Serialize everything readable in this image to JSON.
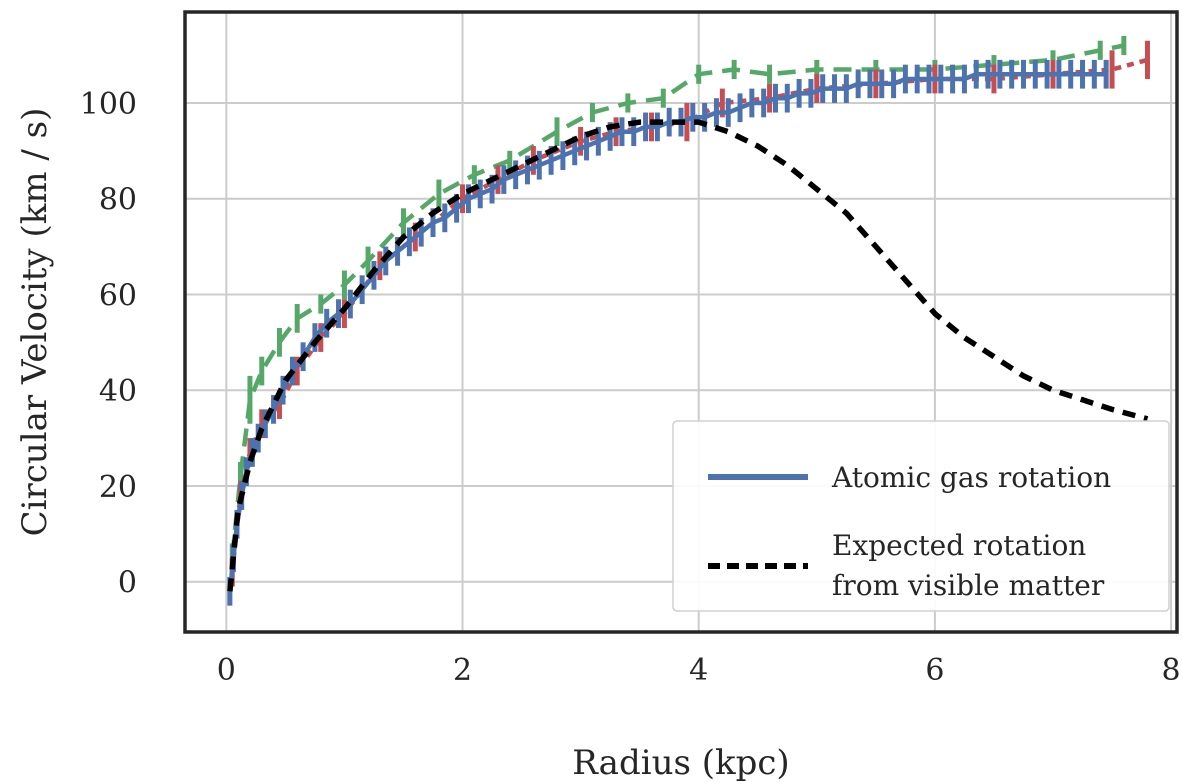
{
  "chart_data": {
    "type": "line",
    "xlabel": "Radius (kpc)",
    "ylabel": "Circular Velocity (km / s)",
    "xlim": [
      -0.35,
      8.05
    ],
    "ylim": [
      -10.5,
      119
    ],
    "xticks": [
      0,
      2,
      4,
      6,
      8
    ],
    "yticks": [
      0,
      20,
      40,
      60,
      80,
      100
    ],
    "grid": true,
    "legend_position": "lower-right",
    "legend": [
      {
        "label": "Atomic gas rotation",
        "series": "atomic"
      },
      {
        "label_lines": [
          "Expected rotation",
          "from visible matter"
        ],
        "series": "expected"
      }
    ],
    "series": [
      {
        "key": "green",
        "color": "#55a868",
        "style": "dashed",
        "x": [
          0.05,
          0.12,
          0.2,
          0.3,
          0.45,
          0.6,
          0.8,
          1.0,
          1.2,
          1.5,
          1.8,
          2.1,
          2.4,
          2.8,
          3.1,
          3.4,
          3.7,
          4.0,
          4.3,
          4.6,
          5.0,
          5.5,
          6.0,
          6.5,
          7.0,
          7.4,
          7.6
        ],
        "y": [
          5,
          22,
          38,
          44,
          50,
          55,
          58,
          62,
          67,
          75,
          81,
          85,
          88,
          94,
          98,
          100,
          101,
          106,
          107,
          106,
          107,
          107,
          107,
          108,
          109,
          111,
          112
        ],
        "errors": [
          3,
          3,
          5,
          3,
          3,
          3,
          2,
          3,
          3,
          3,
          3,
          2,
          2,
          3,
          2,
          2,
          2,
          2,
          2,
          2,
          2,
          2,
          2,
          2,
          2,
          2,
          2
        ]
      },
      {
        "key": "red",
        "color": "#c44e52",
        "style": "dotted",
        "x": [
          0.05,
          0.12,
          0.2,
          0.3,
          0.45,
          0.6,
          0.8,
          1.0,
          1.3,
          1.6,
          2.0,
          2.3,
          2.6,
          3.0,
          3.3,
          3.6,
          3.9,
          4.2,
          4.6,
          5.0,
          5.5,
          6.0,
          6.5,
          7.0,
          7.5,
          7.8
        ],
        "y": [
          2,
          18,
          27,
          33,
          37,
          44,
          51,
          56,
          66,
          72,
          80,
          84,
          88,
          92,
          94,
          95,
          96,
          100,
          101,
          103,
          104,
          105,
          105,
          106,
          107,
          109
        ],
        "errors": [
          3,
          3,
          3,
          3,
          3,
          3,
          3,
          3,
          3,
          3,
          3,
          3,
          3,
          3,
          3,
          3,
          4,
          3,
          3,
          3,
          3,
          3,
          3,
          3,
          4,
          4
        ]
      },
      {
        "key": "atomic",
        "color": "#4c72b0",
        "style": "solid",
        "x": [
          0.03,
          0.06,
          0.09,
          0.13,
          0.17,
          0.22,
          0.27,
          0.33,
          0.4,
          0.48,
          0.56,
          0.65,
          0.75,
          0.85,
          0.95,
          1.05,
          1.15,
          1.25,
          1.35,
          1.45,
          1.55,
          1.65,
          1.75,
          1.85,
          1.95,
          2.05,
          2.15,
          2.25,
          2.35,
          2.45,
          2.55,
          2.65,
          2.75,
          2.85,
          2.95,
          3.05,
          3.15,
          3.25,
          3.35,
          3.45,
          3.55,
          3.65,
          3.75,
          3.85,
          3.95,
          4.05,
          4.15,
          4.25,
          4.35,
          4.45,
          4.55,
          4.65,
          4.75,
          4.85,
          4.95,
          5.05,
          5.15,
          5.25,
          5.35,
          5.45,
          5.55,
          5.65,
          5.75,
          5.85,
          5.95,
          6.05,
          6.15,
          6.25,
          6.35,
          6.45,
          6.55,
          6.65,
          6.75,
          6.85,
          6.95,
          7.05,
          7.15,
          7.25,
          7.35,
          7.45
        ],
        "y": [
          -2,
          5,
          12,
          18,
          23,
          27,
          30,
          33,
          36,
          40,
          44,
          47,
          51,
          54,
          56,
          58,
          61,
          64,
          67,
          69,
          71,
          73,
          75,
          76,
          78,
          80,
          81,
          82,
          84,
          85,
          86,
          87,
          88,
          89,
          90,
          91,
          92,
          93,
          94,
          94,
          95,
          95,
          96,
          96,
          97,
          97,
          98,
          98,
          99,
          100,
          100,
          101,
          101,
          102,
          102,
          103,
          103,
          103,
          104,
          104,
          104,
          104,
          105,
          105,
          105,
          105,
          105,
          105,
          106,
          106,
          106,
          106,
          106,
          106,
          106,
          106,
          106,
          106,
          106,
          106
        ],
        "errors": [
          3,
          3,
          3,
          3,
          3,
          3,
          3,
          3,
          3,
          3,
          3,
          3,
          3,
          3,
          3,
          3,
          3,
          3,
          3,
          3,
          3,
          3,
          3,
          3,
          3,
          3,
          3,
          3,
          3,
          3,
          3,
          3,
          3,
          3,
          3,
          3,
          3,
          3,
          3,
          3,
          3,
          3,
          3,
          3,
          3,
          3,
          3,
          3,
          3,
          3,
          3,
          3,
          3,
          3,
          3,
          3,
          3,
          3,
          3,
          3,
          3,
          3,
          3,
          3,
          3,
          3,
          3,
          3,
          3,
          3,
          3,
          3,
          3,
          3,
          3,
          3,
          3,
          3,
          3,
          3
        ]
      },
      {
        "key": "expected",
        "color": "#000000",
        "style": "dashed",
        "x": [
          0.03,
          0.1,
          0.2,
          0.3,
          0.5,
          0.75,
          1.0,
          1.25,
          1.5,
          1.75,
          2.0,
          2.25,
          2.5,
          2.75,
          3.0,
          3.25,
          3.5,
          3.75,
          4.0,
          4.25,
          4.5,
          4.75,
          5.0,
          5.25,
          5.5,
          5.75,
          6.0,
          6.25,
          6.5,
          6.75,
          7.0,
          7.25,
          7.5,
          7.8
        ],
        "y": [
          -2,
          15,
          25,
          32,
          42,
          50,
          57,
          65,
          72,
          77,
          81,
          84,
          87,
          90,
          93,
          95,
          96,
          96,
          96,
          94,
          91,
          87,
          82,
          77,
          70,
          63,
          56,
          51,
          47,
          43,
          40,
          38,
          36,
          34
        ]
      }
    ]
  }
}
